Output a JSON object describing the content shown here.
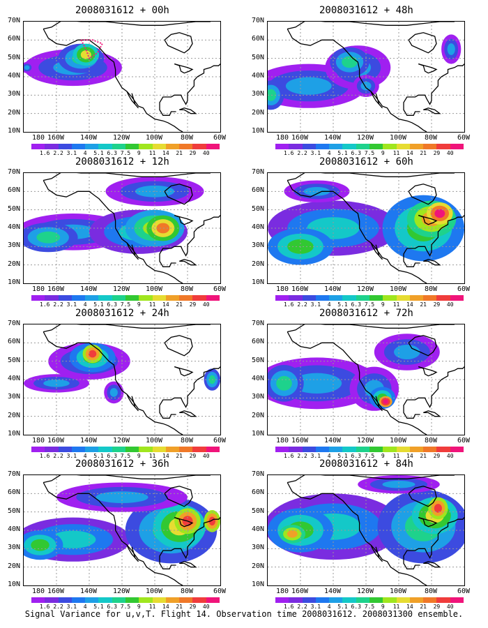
{
  "panels": [
    {
      "title": "2008031612 + 00h",
      "col": 0,
      "row": 0,
      "level": 0
    },
    {
      "title": "2008031612 + 48h",
      "col": 1,
      "row": 0,
      "level": 4
    },
    {
      "title": "2008031612 + 12h",
      "col": 0,
      "row": 1,
      "level": 1
    },
    {
      "title": "2008031612 + 60h",
      "col": 1,
      "row": 1,
      "level": 5
    },
    {
      "title": "2008031612 + 24h",
      "col": 0,
      "row": 2,
      "level": 2
    },
    {
      "title": "2008031612 + 72h",
      "col": 1,
      "row": 2,
      "level": 6
    },
    {
      "title": "2008031612 + 36h",
      "col": 0,
      "row": 3,
      "level": 3
    },
    {
      "title": "2008031612 + 84h",
      "col": 1,
      "row": 3,
      "level": 7
    }
  ],
  "lat_labels": [
    "70N",
    "60N",
    "50N",
    "40N",
    "30N",
    "20N",
    "10N"
  ],
  "lon_labels": [
    "180",
    "160W",
    "140W",
    "120W",
    "100W",
    "80W",
    "60W"
  ],
  "colorbar": {
    "labels": [
      "1.6",
      "2.2",
      "3.1",
      "4",
      "5.1",
      "6.3",
      "7.5",
      "9",
      "11",
      "14",
      "21",
      "29",
      "40"
    ],
    "colors": [
      "#a020f0",
      "#7a2ce0",
      "#3c4be0",
      "#1e78f0",
      "#1ea0e6",
      "#14c8c8",
      "#1ed28c",
      "#32c832",
      "#a0e61e",
      "#e6dc32",
      "#f0a028",
      "#f07828",
      "#f03c3c",
      "#f0147a"
    ]
  },
  "footer": "Signal Variance for u,v,T. Flight 14. Observation time 2008031612. 2008031300 ensemble."
}
